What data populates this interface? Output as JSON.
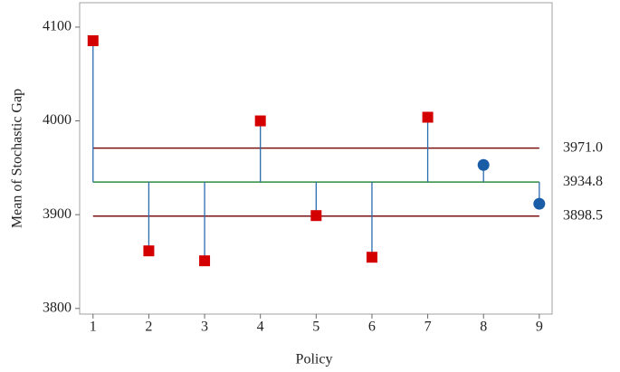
{
  "chart_data": {
    "type": "anom",
    "xlabel": "Policy",
    "ylabel": "Mean of Stochastic Gap",
    "x": [
      1,
      2,
      3,
      4,
      5,
      6,
      7,
      8,
      9
    ],
    "values": [
      4085.5,
      3861.4,
      3850.8,
      4000,
      3899,
      3854.6,
      4003.9,
      3953,
      3911.6
    ],
    "markers": [
      "square",
      "square",
      "square",
      "square",
      "square",
      "square",
      "square",
      "circle",
      "circle"
    ],
    "marker_colors": [
      "#d40000",
      "#d40000",
      "#d40000",
      "#d40000",
      "#d40000",
      "#d40000",
      "#d40000",
      "#1a5da6",
      "#1a5da6"
    ],
    "stem_color": "#2a6cb0",
    "center_line": {
      "value": 3934.8,
      "label": "3934.8",
      "color": "#2e8b3e"
    },
    "limit_lines": [
      {
        "value": 3971.0,
        "label": "3971.0",
        "color": "#7a1010"
      },
      {
        "value": 3898.5,
        "label": "3898.5",
        "color": "#7a1010"
      }
    ],
    "xlim": [
      0.76,
      9.23
    ],
    "ylim": [
      3794,
      4126
    ],
    "xticks": [
      1,
      2,
      3,
      4,
      5,
      6,
      7,
      8,
      9
    ],
    "yticks": [
      3800,
      3900,
      4000,
      4100
    ]
  }
}
